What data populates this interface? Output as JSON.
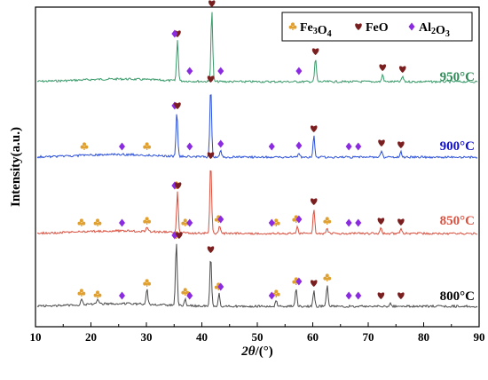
{
  "chart_data": {
    "type": "line",
    "xlabel_italic": "2θ",
    "xlabel_rest": "/(°)",
    "ylabel": "Intensity(a.u.)",
    "xlim": [
      10,
      90
    ],
    "xticks": [
      10,
      20,
      30,
      40,
      50,
      60,
      70,
      80,
      90
    ],
    "grid": false,
    "legend_position": "top-right",
    "legend": [
      {
        "key": "fe3o4",
        "parts": [
          [
            "Fe",
            ""
          ],
          [
            "3",
            "sub"
          ],
          [
            "O",
            ""
          ],
          [
            "4",
            "sub"
          ]
        ],
        "marker": "club",
        "color": "#E0A030"
      },
      {
        "key": "feo",
        "parts": [
          [
            "FeO",
            ""
          ]
        ],
        "marker": "heart",
        "color": "#7A1F1F"
      },
      {
        "key": "al2o3",
        "parts": [
          [
            "Al",
            ""
          ],
          [
            "2",
            "sub"
          ],
          [
            "O",
            ""
          ],
          [
            "3",
            "sub"
          ]
        ],
        "marker": "diamond",
        "color": "#8A2BE2"
      }
    ],
    "series": [
      {
        "name": "950°C",
        "color": "#3A9A6A",
        "label_color": "#2E8B57",
        "peaks": [
          {
            "x": 35.6,
            "h": 46
          },
          {
            "x": 41.8,
            "h": 80
          },
          {
            "x": 60.5,
            "h": 26
          },
          {
            "x": 72.6,
            "h": 8
          },
          {
            "x": 76.2,
            "h": 6
          }
        ],
        "markers": [
          {
            "x": 35.6,
            "kind": "feo"
          },
          {
            "x": 41.8,
            "kind": "feo"
          },
          {
            "x": 60.5,
            "kind": "feo"
          },
          {
            "x": 72.6,
            "kind": "feo"
          },
          {
            "x": 76.2,
            "kind": "feo"
          },
          {
            "x": 35.1,
            "kind": "al2o3"
          },
          {
            "x": 37.8,
            "kind": "al2o3"
          },
          {
            "x": 43.4,
            "kind": "al2o3"
          },
          {
            "x": 57.5,
            "kind": "al2o3"
          }
        ]
      },
      {
        "name": "900°C",
        "color": "#2A4FD8",
        "label_color": "#1010CC",
        "peaks": [
          {
            "x": 35.5,
            "h": 50
          },
          {
            "x": 41.6,
            "h": 80
          },
          {
            "x": 60.2,
            "h": 24
          },
          {
            "x": 72.4,
            "h": 8
          },
          {
            "x": 75.9,
            "h": 6
          },
          {
            "x": 57.5,
            "h": 5
          },
          {
            "x": 43.4,
            "h": 7
          }
        ],
        "markers": [
          {
            "x": 18.8,
            "kind": "fe3o4"
          },
          {
            "x": 30.1,
            "kind": "fe3o4"
          },
          {
            "x": 25.6,
            "kind": "al2o3"
          },
          {
            "x": 35.1,
            "kind": "al2o3"
          },
          {
            "x": 37.8,
            "kind": "al2o3"
          },
          {
            "x": 43.4,
            "kind": "al2o3"
          },
          {
            "x": 52.6,
            "kind": "al2o3"
          },
          {
            "x": 57.5,
            "kind": "al2o3"
          },
          {
            "x": 66.5,
            "kind": "al2o3"
          },
          {
            "x": 68.2,
            "kind": "al2o3"
          },
          {
            "x": 35.6,
            "kind": "feo"
          },
          {
            "x": 41.6,
            "kind": "feo"
          },
          {
            "x": 60.2,
            "kind": "feo"
          },
          {
            "x": 72.4,
            "kind": "feo"
          },
          {
            "x": 75.9,
            "kind": "feo"
          }
        ]
      },
      {
        "name": "850°C",
        "color": "#D9503F",
        "label_color": "#D9503F",
        "peaks": [
          {
            "x": 35.6,
            "h": 46
          },
          {
            "x": 41.6,
            "h": 80
          },
          {
            "x": 60.2,
            "h": 28
          },
          {
            "x": 43.2,
            "h": 8
          },
          {
            "x": 57.2,
            "h": 8
          },
          {
            "x": 62.6,
            "h": 6
          },
          {
            "x": 30.1,
            "h": 6
          },
          {
            "x": 72.3,
            "h": 6
          },
          {
            "x": 75.9,
            "h": 5
          }
        ],
        "markers": [
          {
            "x": 18.3,
            "kind": "fe3o4"
          },
          {
            "x": 21.2,
            "kind": "fe3o4"
          },
          {
            "x": 30.1,
            "kind": "fe3o4"
          },
          {
            "x": 35.4,
            "kind": "fe3o4"
          },
          {
            "x": 37.0,
            "kind": "fe3o4"
          },
          {
            "x": 43.0,
            "kind": "fe3o4"
          },
          {
            "x": 53.4,
            "kind": "fe3o4"
          },
          {
            "x": 57.0,
            "kind": "fe3o4"
          },
          {
            "x": 62.6,
            "kind": "fe3o4"
          },
          {
            "x": 25.6,
            "kind": "al2o3"
          },
          {
            "x": 35.1,
            "kind": "al2o3"
          },
          {
            "x": 37.8,
            "kind": "al2o3"
          },
          {
            "x": 43.4,
            "kind": "al2o3"
          },
          {
            "x": 52.6,
            "kind": "al2o3"
          },
          {
            "x": 57.5,
            "kind": "al2o3"
          },
          {
            "x": 66.5,
            "kind": "al2o3"
          },
          {
            "x": 68.2,
            "kind": "al2o3"
          },
          {
            "x": 35.7,
            "kind": "feo"
          },
          {
            "x": 41.6,
            "kind": "feo"
          },
          {
            "x": 60.2,
            "kind": "feo"
          },
          {
            "x": 72.3,
            "kind": "feo"
          },
          {
            "x": 75.9,
            "kind": "feo"
          }
        ]
      },
      {
        "name": "800°C",
        "color": "#4A4A4A",
        "label_color": "#000000",
        "peaks": [
          {
            "x": 35.4,
            "h": 72
          },
          {
            "x": 41.6,
            "h": 56
          },
          {
            "x": 62.6,
            "h": 24
          },
          {
            "x": 30.1,
            "h": 18
          },
          {
            "x": 57.0,
            "h": 20
          },
          {
            "x": 43.1,
            "h": 14
          },
          {
            "x": 60.2,
            "h": 18
          },
          {
            "x": 18.3,
            "h": 7
          },
          {
            "x": 21.2,
            "h": 5
          },
          {
            "x": 37.0,
            "h": 8
          },
          {
            "x": 53.4,
            "h": 6
          },
          {
            "x": 74.0,
            "h": 4
          }
        ],
        "markers": [
          {
            "x": 18.3,
            "kind": "fe3o4"
          },
          {
            "x": 21.2,
            "kind": "fe3o4"
          },
          {
            "x": 30.1,
            "kind": "fe3o4"
          },
          {
            "x": 35.4,
            "kind": "fe3o4"
          },
          {
            "x": 37.0,
            "kind": "fe3o4"
          },
          {
            "x": 43.0,
            "kind": "fe3o4"
          },
          {
            "x": 53.4,
            "kind": "fe3o4"
          },
          {
            "x": 57.0,
            "kind": "fe3o4"
          },
          {
            "x": 62.6,
            "kind": "fe3o4"
          },
          {
            "x": 25.6,
            "kind": "al2o3"
          },
          {
            "x": 35.1,
            "kind": "al2o3"
          },
          {
            "x": 37.8,
            "kind": "al2o3"
          },
          {
            "x": 43.4,
            "kind": "al2o3"
          },
          {
            "x": 52.6,
            "kind": "al2o3"
          },
          {
            "x": 57.5,
            "kind": "al2o3"
          },
          {
            "x": 66.5,
            "kind": "al2o3"
          },
          {
            "x": 68.2,
            "kind": "al2o3"
          },
          {
            "x": 35.9,
            "kind": "feo"
          },
          {
            "x": 41.6,
            "kind": "feo"
          },
          {
            "x": 60.2,
            "kind": "feo"
          },
          {
            "x": 72.3,
            "kind": "feo"
          },
          {
            "x": 75.9,
            "kind": "feo"
          }
        ]
      }
    ]
  }
}
